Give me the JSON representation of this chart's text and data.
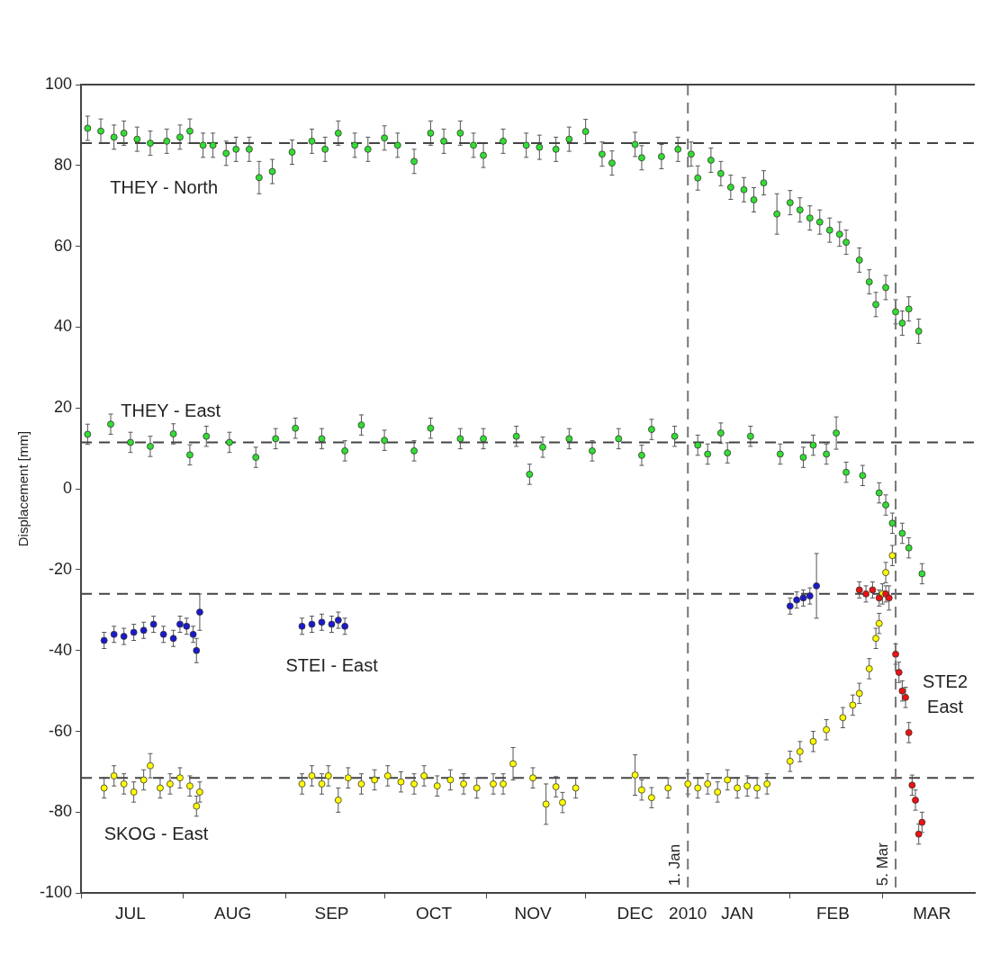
{
  "chart_data": {
    "type": "scatter",
    "ylabel": "Displacement [mm]",
    "marker": "circle",
    "grid": false,
    "legend": false,
    "xlim": [
      "2009-07-01",
      "2010-03-29"
    ],
    "xticks": [
      {
        "value": "2009-07-01",
        "label": null
      },
      {
        "value": "2009-07-16",
        "label": "JUL"
      },
      {
        "value": "2009-08-01",
        "label": null
      },
      {
        "value": "2009-08-16",
        "label": "AUG"
      },
      {
        "value": "2009-09-01",
        "label": null
      },
      {
        "value": "2009-09-15",
        "label": "SEP"
      },
      {
        "value": "2009-10-01",
        "label": null
      },
      {
        "value": "2009-10-16",
        "label": "OCT"
      },
      {
        "value": "2009-11-01",
        "label": null
      },
      {
        "value": "2009-11-15",
        "label": "NOV"
      },
      {
        "value": "2009-12-01",
        "label": null
      },
      {
        "value": "2009-12-16",
        "label": "DEC"
      },
      {
        "value": "2010-01-01",
        "label": "2010"
      },
      {
        "value": "2010-01-16",
        "label": "JAN"
      },
      {
        "value": "2010-02-01",
        "label": null
      },
      {
        "value": "2010-02-14",
        "label": "FEB"
      },
      {
        "value": "2010-03-01",
        "label": null
      },
      {
        "value": "2010-03-16",
        "label": "MAR"
      }
    ],
    "ylim": [
      -100,
      100
    ],
    "yticks": [
      -100,
      -80,
      -60,
      -40,
      -20,
      0,
      20,
      40,
      60,
      80,
      100
    ],
    "ref_lines": [
      {
        "axis": "y",
        "value": 85.5,
        "color": "#444444",
        "line_style": "dashed"
      },
      {
        "axis": "y",
        "value": 11.5,
        "color": "#444444",
        "line_style": "dashed"
      },
      {
        "axis": "y",
        "value": -26,
        "color": "#444444",
        "line_style": "dashed"
      },
      {
        "axis": "y",
        "value": -71.5,
        "color": "#444444",
        "line_style": "dashed"
      },
      {
        "axis": "x",
        "value": "2010-01-01",
        "label": "1. Jan",
        "color": "#777777",
        "line_style": "dashed"
      },
      {
        "axis": "x",
        "value": "2010-03-05",
        "label": "5. Mar",
        "color": "#777777",
        "line_style": "dashed"
      }
    ],
    "series": [
      {
        "name": "THEY - North",
        "color": "#33dd33",
        "x": [
          "2009-07-03",
          "2009-07-07",
          "2009-07-11",
          "2009-07-14",
          "2009-07-18",
          "2009-07-22",
          "2009-07-27",
          "2009-07-31",
          "2009-08-03",
          "2009-08-07",
          "2009-08-10",
          "2009-08-14",
          "2009-08-17",
          "2009-08-21",
          "2009-08-24",
          "2009-08-28",
          "2009-09-03",
          "2009-09-09",
          "2009-09-13",
          "2009-09-17",
          "2009-09-22",
          "2009-09-26",
          "2009-10-01",
          "2009-10-05",
          "2009-10-10",
          "2009-10-15",
          "2009-10-19",
          "2009-10-24",
          "2009-10-28",
          "2009-10-31",
          "2009-11-06",
          "2009-11-13",
          "2009-11-17",
          "2009-11-22",
          "2009-11-26",
          "2009-12-01",
          "2009-12-06",
          "2009-12-09",
          "2009-12-16",
          "2009-12-18",
          "2009-12-24",
          "2009-12-29",
          "2010-01-02",
          "2010-01-04",
          "2010-01-08",
          "2010-01-11",
          "2010-01-14",
          "2010-01-18",
          "2010-01-21",
          "2010-01-24",
          "2010-01-28",
          "2010-02-01",
          "2010-02-04",
          "2010-02-07",
          "2010-02-10",
          "2010-02-13",
          "2010-02-16",
          "2010-02-18",
          "2010-02-22",
          "2010-02-25",
          "2010-02-27",
          "2010-03-02",
          "2010-03-05",
          "2010-03-07",
          "2010-03-09",
          "2010-03-12"
        ],
        "values": [
          89.2,
          88.5,
          87,
          88,
          86.5,
          85.5,
          86,
          87,
          88.5,
          85,
          85,
          83,
          84,
          84,
          77,
          78.5,
          83.3,
          86,
          84,
          88,
          85,
          84,
          86.8,
          85,
          81,
          88,
          86,
          88,
          85,
          82.5,
          86,
          85,
          84.5,
          84,
          86.5,
          88.4,
          82.8,
          80.6,
          85.2,
          81.9,
          82.2,
          84,
          82.8,
          76.9,
          81.3,
          78,
          74.6,
          74,
          71.5,
          75.7,
          68,
          70.8,
          69,
          67,
          66,
          64,
          63,
          61,
          56.6,
          51.2,
          45.6,
          49.8,
          43.8,
          41,
          44.5,
          39
        ],
        "errors": [
          3,
          3,
          3,
          3,
          3,
          3,
          3,
          3,
          3,
          3,
          3,
          3,
          3,
          3,
          4,
          3,
          3,
          3,
          3,
          3,
          3,
          3,
          3,
          3,
          3,
          3,
          3,
          3,
          3,
          3,
          3,
          3,
          3,
          3,
          3,
          3,
          3,
          3,
          3,
          3,
          3,
          3,
          3,
          3,
          3,
          3,
          3,
          3,
          3,
          3,
          5,
          3,
          3,
          3,
          3,
          3,
          3,
          3,
          3,
          3,
          3,
          3,
          3,
          3,
          3,
          3
        ]
      },
      {
        "name": "THEY - East",
        "color": "#33dd33",
        "x": [
          "2009-07-03",
          "2009-07-10",
          "2009-07-16",
          "2009-07-22",
          "2009-07-29",
          "2009-08-03",
          "2009-08-08",
          "2009-08-15",
          "2009-08-23",
          "2009-08-29",
          "2009-09-04",
          "2009-09-12",
          "2009-09-19",
          "2009-09-24",
          "2009-10-01",
          "2009-10-10",
          "2009-10-15",
          "2009-10-24",
          "2009-10-31",
          "2009-11-10",
          "2009-11-14",
          "2009-11-18",
          "2009-11-26",
          "2009-12-03",
          "2009-12-11",
          "2009-12-18",
          "2009-12-21",
          "2009-12-28",
          "2010-01-04",
          "2010-01-07",
          "2010-01-11",
          "2010-01-13",
          "2010-01-20",
          "2010-01-29",
          "2010-02-05",
          "2010-02-08",
          "2010-02-12",
          "2010-02-15",
          "2010-02-18",
          "2010-02-23",
          "2010-02-28",
          "2010-03-02",
          "2010-03-04",
          "2010-03-07",
          "2010-03-09",
          "2010-03-13"
        ],
        "values": [
          13.5,
          16,
          11.5,
          10.5,
          13.6,
          8.4,
          13,
          11.5,
          7.8,
          12.4,
          15,
          12.4,
          9.4,
          15.8,
          12,
          9.4,
          15,
          12.4,
          12.4,
          13,
          3.6,
          10.3,
          12.4,
          9.4,
          12.4,
          8.3,
          14.7,
          13,
          10.8,
          8.6,
          13.8,
          8.9,
          13,
          8.6,
          7.8,
          10.8,
          8.6,
          13.8,
          4.1,
          3.3,
          -1,
          -4,
          -8.5,
          -11,
          -14.6,
          -21
        ],
        "errors": [
          2.5,
          2.5,
          2.5,
          2.5,
          2.5,
          2.5,
          2.5,
          2.5,
          2.5,
          2.5,
          2.5,
          2.5,
          2.5,
          2.5,
          2.5,
          2.5,
          2.5,
          2.5,
          2.5,
          2.5,
          2.5,
          2.5,
          2.5,
          2.5,
          2.5,
          2.5,
          2.5,
          2.5,
          2.5,
          2.5,
          2.5,
          2.5,
          2.5,
          2.5,
          2.5,
          2.5,
          2.5,
          4,
          2.5,
          2.5,
          2.5,
          2.5,
          2.5,
          2.5,
          2.5,
          2.5
        ]
      },
      {
        "name": "STEI - East",
        "color": "#1a1acc",
        "x": [
          "2009-07-08",
          "2009-07-11",
          "2009-07-14",
          "2009-07-17",
          "2009-07-20",
          "2009-07-23",
          "2009-07-26",
          "2009-07-29",
          "2009-07-31",
          "2009-08-02",
          "2009-08-04",
          "2009-08-05",
          "2009-08-06",
          "2009-09-06",
          "2009-09-09",
          "2009-09-12",
          "2009-09-15",
          "2009-09-17",
          "2009-09-19",
          "2010-02-01",
          "2010-02-03",
          "2010-02-05",
          "2010-02-07",
          "2010-02-09"
        ],
        "values": [
          -37.5,
          -36,
          -36.5,
          -35.5,
          -35,
          -33.5,
          -36,
          -37,
          -33.5,
          -34,
          -36,
          -40,
          -30.5,
          -34,
          -33.5,
          -33,
          -33.5,
          -32.5,
          -34,
          -29,
          -27.5,
          -27,
          -26.5,
          -24
        ],
        "errors": [
          2,
          2,
          2,
          2,
          2,
          2,
          2,
          2,
          2,
          2,
          2,
          3,
          4.5,
          2,
          2,
          2,
          2,
          2,
          2,
          2,
          2,
          2,
          2,
          8
        ]
      },
      {
        "name": "SKOG - East",
        "color": "#ffff00",
        "x": [
          "2009-07-08",
          "2009-07-11",
          "2009-07-14",
          "2009-07-17",
          "2009-07-20",
          "2009-07-22",
          "2009-07-25",
          "2009-07-28",
          "2009-07-31",
          "2009-08-03",
          "2009-08-05",
          "2009-08-06",
          "2009-09-06",
          "2009-09-09",
          "2009-09-12",
          "2009-09-14",
          "2009-09-17",
          "2009-09-20",
          "2009-09-24",
          "2009-09-28",
          "2009-10-02",
          "2009-10-06",
          "2009-10-10",
          "2009-10-13",
          "2009-10-17",
          "2009-10-21",
          "2009-10-25",
          "2009-10-29",
          "2009-11-03",
          "2009-11-06",
          "2009-11-09",
          "2009-11-15",
          "2009-11-19",
          "2009-11-22",
          "2009-11-24",
          "2009-11-28",
          "2009-12-16",
          "2009-12-18",
          "2009-12-21",
          "2009-12-26",
          "2010-01-01",
          "2010-01-04",
          "2010-01-07",
          "2010-01-10",
          "2010-01-13",
          "2010-01-16",
          "2010-01-19",
          "2010-01-22",
          "2010-01-25",
          "2010-02-01",
          "2010-02-04",
          "2010-02-08",
          "2010-02-12",
          "2010-02-17",
          "2010-02-20",
          "2010-02-22",
          "2010-02-25",
          "2010-02-27",
          "2010-02-28",
          "2010-03-01",
          "2010-03-02",
          "2010-03-04"
        ],
        "values": [
          -74,
          -71,
          -73,
          -75,
          -72,
          -68.5,
          -74,
          -73,
          -71.5,
          -73.5,
          -78.5,
          -75,
          -73,
          -71,
          -73,
          -71,
          -77,
          -71.5,
          -73,
          -72,
          -71,
          -72.5,
          -73,
          -71,
          -73.5,
          -72,
          -73,
          -74,
          -73,
          -73,
          -68,
          -71.5,
          -78,
          -73.7,
          -77.6,
          -74,
          -70.8,
          -74.5,
          -76.4,
          -74,
          -73,
          -74,
          -73,
          -75,
          -72,
          -74,
          -73.5,
          -74,
          -73,
          -67.4,
          -65,
          -62.5,
          -59.6,
          -56.6,
          -53.5,
          -50.6,
          -44.5,
          -37,
          -33.3,
          -26,
          -20.7,
          -16.5
        ],
        "errors": [
          2.5,
          2.5,
          2.5,
          2.5,
          2.5,
          3,
          2.5,
          2.5,
          2.5,
          2.5,
          2.5,
          2.5,
          2.5,
          2.5,
          2.5,
          2.5,
          3,
          2.5,
          2.5,
          2.5,
          2.5,
          2.5,
          2.5,
          2.5,
          2.5,
          2.5,
          2.5,
          2.5,
          2.5,
          2.5,
          4,
          2.5,
          5,
          2.5,
          2.5,
          2.5,
          5,
          2.5,
          2.5,
          2.5,
          2.5,
          2.5,
          2.5,
          2.5,
          2.5,
          2.5,
          2.5,
          2.5,
          2.5,
          2.5,
          2.5,
          2.5,
          2.5,
          2.5,
          2.5,
          2.5,
          2.5,
          2.5,
          2.5,
          2.5,
          2.5,
          2.5
        ]
      },
      {
        "name": "STE2 East",
        "color": "#ee1111",
        "x": [
          "2010-02-22",
          "2010-02-24",
          "2010-02-26",
          "2010-02-28",
          "2010-03-02",
          "2010-03-03",
          "2010-03-05",
          "2010-03-06",
          "2010-03-07",
          "2010-03-08",
          "2010-03-09",
          "2010-03-10",
          "2010-03-11",
          "2010-03-12",
          "2010-03-13"
        ],
        "values": [
          -25,
          -26,
          -25,
          -27,
          -26,
          -27,
          -40.9,
          -45.4,
          -50,
          -51.6,
          -60.3,
          -73.3,
          -77,
          -85.4,
          -82.5
        ],
        "errors": [
          2,
          2,
          2,
          2,
          2,
          3,
          2.5,
          2.5,
          2.5,
          2.5,
          2.5,
          2.5,
          2.5,
          2.5,
          2.5
        ]
      }
    ]
  }
}
